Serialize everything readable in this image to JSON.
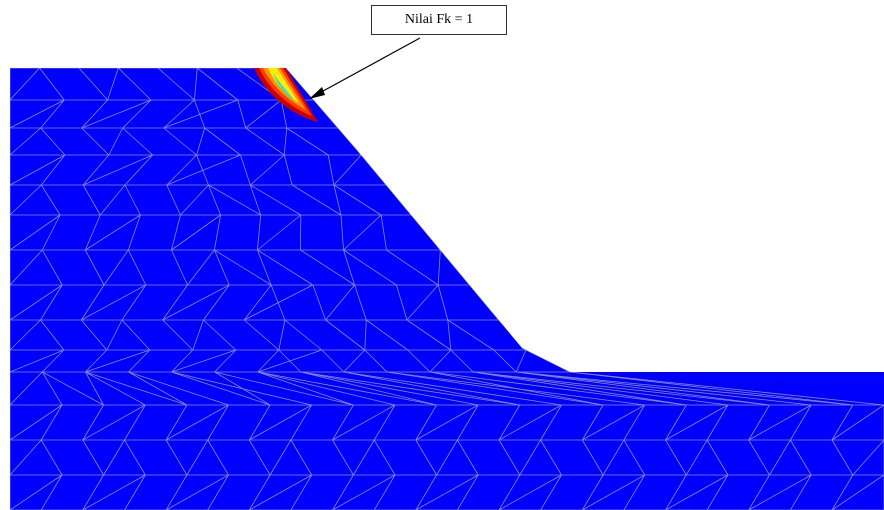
{
  "annotation": {
    "label": "Nilai Fk = 1"
  },
  "colors": {
    "background": "#ffffff",
    "soil": "#0000ff",
    "mesh_lines": "#8a8ac8",
    "failure_zone_outer": "#c80000",
    "failure_zone_mid": "#ff3c00",
    "failure_zone_orange": "#ff9600",
    "failure_zone_yellow": "#ffee00",
    "failure_zone_cyan": "#27e0e0",
    "arrow": "#000000"
  }
}
